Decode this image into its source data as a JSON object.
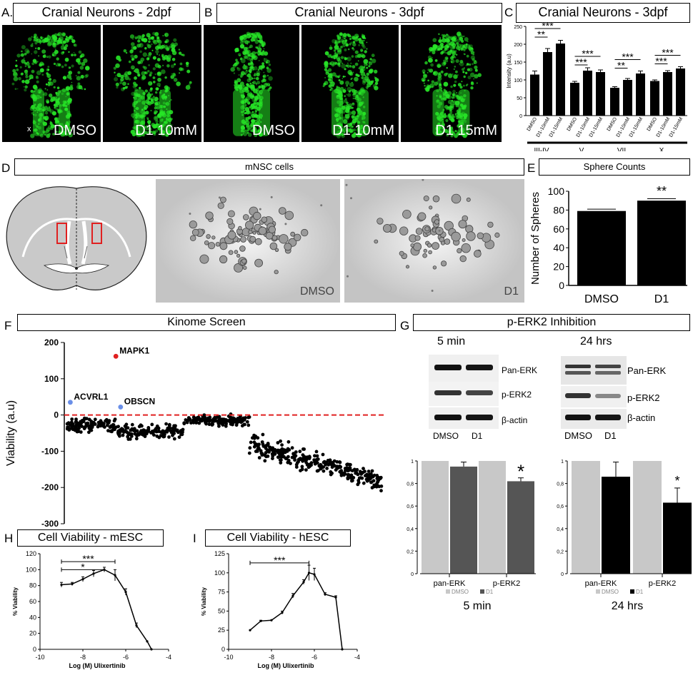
{
  "panels": {
    "A": {
      "letter": "A.",
      "title": "Cranial Neurons - 2dpf",
      "marker": "x",
      "images": [
        "DMSO",
        "D1 10mM"
      ]
    },
    "B": {
      "letter": "B",
      "title": "Cranial Neurons - 3dpf",
      "images": [
        "DMSO",
        "D1 10mM",
        "D1 15mM"
      ]
    },
    "C": {
      "letter": "C",
      "title": "Cranial Neurons - 3dpf"
    },
    "D": {
      "letter": "D",
      "title": "mNSC cells",
      "images": [
        "DMSO",
        "D1"
      ]
    },
    "E": {
      "letter": "E",
      "title": "Sphere Counts"
    },
    "F": {
      "letter": "F",
      "title": "Kinome Screen"
    },
    "G": {
      "letter": "G",
      "title": "p-ERK2 Inhibition",
      "blots": [
        {
          "time": "5 min",
          "bands": [
            "Pan-ERK",
            "p-ERK2",
            "β-actin"
          ],
          "lanes": [
            "DMSO",
            "D1"
          ]
        },
        {
          "time": "24 hrs",
          "bands": [
            "Pan-ERK",
            "p-ERK2",
            "β-actin"
          ],
          "lanes": [
            "DMSO",
            "D1"
          ]
        }
      ]
    },
    "H": {
      "letter": "H",
      "title": "Cell Viability - mESC"
    },
    "I": {
      "letter": "I",
      "title": "Cell Viability - hESC"
    }
  },
  "colors": {
    "fluor": "#27e627",
    "dmso_bar": "#c8c8c8",
    "d1_bar_5min": "#555555",
    "d1_bar_24h": "#000000",
    "dashed": "#e02020",
    "highlight_red": "#e02020",
    "highlight_blue": "#6a8fe8"
  },
  "chart_data": [
    {
      "id": "C",
      "type": "bar",
      "title": "Cranial Neurons - 3dpf",
      "ylabel": "Intensity (a.u)",
      "ylim": [
        0,
        250
      ],
      "yticks": [
        0,
        50,
        100,
        150,
        200,
        250
      ],
      "groups": [
        {
          "name": "III-IV",
          "categories": [
            "DMSO",
            "D1-10mM",
            "D1-15mM"
          ],
          "values": [
            115,
            178,
            202
          ],
          "errors": [
            10,
            10,
            9
          ]
        },
        {
          "name": "V",
          "categories": [
            "DMSO",
            "D1-10mM",
            "D1-15mM"
          ],
          "values": [
            92,
            126,
            122
          ],
          "errors": [
            4,
            8,
            6
          ]
        },
        {
          "name": "VII",
          "categories": [
            "DMSO",
            "D1-10mM",
            "D1-15mM"
          ],
          "values": [
            78,
            100,
            118
          ],
          "errors": [
            3,
            4,
            7
          ]
        },
        {
          "name": "X",
          "categories": [
            "DMSO",
            "D1-10mM",
            "D1-15mM"
          ],
          "values": [
            97,
            122,
            132
          ],
          "errors": [
            3,
            4,
            5
          ]
        }
      ],
      "annotations": [
        "***",
        "**",
        "***",
        "***",
        "***",
        "**",
        "***",
        "***"
      ]
    },
    {
      "id": "E",
      "type": "bar",
      "title": "Sphere Counts",
      "ylabel": "Number of Spheres",
      "ylim": [
        0,
        100
      ],
      "yticks": [
        0,
        20,
        40,
        60,
        80,
        100
      ],
      "categories": [
        "DMSO",
        "D1"
      ],
      "values": [
        79,
        90
      ],
      "errors": [
        2,
        2
      ],
      "annotations": [
        "**"
      ]
    },
    {
      "id": "F",
      "type": "scatter",
      "title": "Kinome Screen",
      "ylabel": "Viability (a.u)",
      "ylim": [
        -300,
        200
      ],
      "yticks": [
        200,
        100,
        0,
        -100,
        -200,
        -300
      ],
      "reference_line": 0,
      "highlights": [
        {
          "label": "MAPK1",
          "x": 0.155,
          "y": 162,
          "color": "red"
        },
        {
          "label": "ACVRL1",
          "x": 0.01,
          "y": 35,
          "color": "blue"
        },
        {
          "label": "OBSCN",
          "x": 0.17,
          "y": 22,
          "color": "blue"
        }
      ],
      "segments": [
        {
          "x_range": [
            0,
            0.16
          ],
          "y_mean": -30,
          "y_spread": 22
        },
        {
          "x_range": [
            0.16,
            0.37
          ],
          "y_mean": -45,
          "y_spread": 22
        },
        {
          "x_range": [
            0.37,
            0.58
          ],
          "y_mean": -15,
          "y_spread": 18
        },
        {
          "x_range": [
            0.58,
            1.0
          ],
          "y_start": -80,
          "y_end": -180,
          "y_spread": 35
        }
      ]
    },
    {
      "id": "G-5min",
      "type": "bar",
      "title": "5 min",
      "yticks": [
        0,
        0.2,
        0.4,
        0.6,
        0.8,
        1
      ],
      "ytick_labels": [
        "0",
        "0,2",
        "0,4",
        "0,6",
        "0,8",
        "1"
      ],
      "ylim": [
        0,
        1
      ],
      "categories": [
        "pan-ERK",
        "p-ERK2"
      ],
      "series": [
        {
          "name": "DMSO",
          "values": [
            1,
            1
          ],
          "errors": [
            0,
            0
          ]
        },
        {
          "name": "D1",
          "values": [
            0.95,
            0.82
          ],
          "errors": [
            0.04,
            0.03
          ]
        }
      ],
      "annotations": [
        "*"
      ]
    },
    {
      "id": "G-24h",
      "type": "bar",
      "title": "24 hrs",
      "yticks": [
        0,
        0.2,
        0.4,
        0.6,
        0.8,
        1
      ],
      "ytick_labels": [
        "0",
        "0,2",
        "0,4",
        "0,6",
        "0,8",
        "1"
      ],
      "ylim": [
        0,
        1
      ],
      "categories": [
        "pan-ERK",
        "p-ERK2"
      ],
      "series": [
        {
          "name": "DMSO",
          "values": [
            1,
            1
          ],
          "errors": [
            0,
            0
          ]
        },
        {
          "name": "D1",
          "values": [
            0.86,
            0.63
          ],
          "errors": [
            0.13,
            0.13
          ]
        }
      ],
      "annotations": [
        "*"
      ]
    },
    {
      "id": "H",
      "type": "line",
      "title": "Cell Viability - mESC",
      "xlabel": "Log (M) Ulixertinib",
      "ylabel": "% Viability",
      "xlim": [
        -10,
        -4
      ],
      "ylim": [
        0,
        120
      ],
      "xticks": [
        -10,
        -8,
        -6,
        -4
      ],
      "yticks": [
        0,
        20,
        40,
        60,
        80,
        100,
        120
      ],
      "x": [
        -9,
        -8.5,
        -8,
        -7.5,
        -7,
        -6.5,
        -6,
        -5.5,
        -5,
        -4.8
      ],
      "y": [
        81,
        82,
        88,
        95,
        100,
        93,
        72,
        30,
        10,
        0
      ],
      "errors": [
        3,
        2,
        3,
        4,
        3,
        7,
        4,
        3,
        0,
        0
      ],
      "annotations": [
        "***",
        "*"
      ]
    },
    {
      "id": "I",
      "type": "line",
      "title": "Cell Viability - hESC",
      "xlabel": "Log (M) Ulixertinib",
      "ylabel": "% Viability",
      "xlim": [
        -10,
        -4
      ],
      "ylim": [
        0,
        125
      ],
      "xticks": [
        -10,
        -8,
        -6,
        -4
      ],
      "yticks": [
        0,
        25,
        50,
        75,
        100,
        125
      ],
      "x": [
        -9,
        -8.5,
        -8,
        -7.5,
        -7,
        -6.5,
        -6.25,
        -6,
        -5.5,
        -5,
        -4.7
      ],
      "y": [
        25,
        37,
        38,
        48,
        70,
        88,
        100,
        98,
        72,
        68,
        0
      ],
      "errors": [
        0,
        1,
        0,
        2,
        3,
        3,
        10,
        8,
        2,
        2,
        0
      ],
      "annotations": [
        "***"
      ]
    }
  ]
}
